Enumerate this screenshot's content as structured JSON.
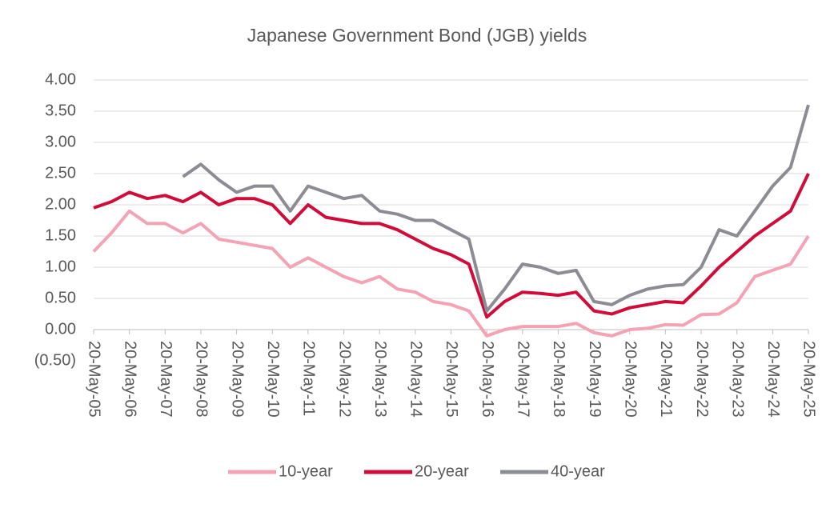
{
  "chart_data": {
    "type": "line",
    "title": "Japanese Government Bond (JGB) yields",
    "x": [
      "20-May-05",
      "20-Nov-05",
      "20-May-06",
      "20-Nov-06",
      "20-May-07",
      "20-Nov-07",
      "20-May-08",
      "20-Nov-08",
      "20-May-09",
      "20-Nov-09",
      "20-May-10",
      "20-Nov-10",
      "20-May-11",
      "20-Nov-11",
      "20-May-12",
      "20-Nov-12",
      "20-May-13",
      "20-Nov-13",
      "20-May-14",
      "20-Nov-14",
      "20-May-15",
      "20-Nov-15",
      "20-May-16",
      "20-Nov-16",
      "20-May-17",
      "20-Nov-17",
      "20-May-18",
      "20-Nov-18",
      "20-May-19",
      "20-Nov-19",
      "20-May-20",
      "20-Nov-20",
      "20-May-21",
      "20-Nov-21",
      "20-May-22",
      "20-Nov-22",
      "20-May-23",
      "20-Nov-23",
      "20-May-24",
      "20-Nov-24",
      "20-May-25"
    ],
    "series": [
      {
        "name": "10-year",
        "color": "#f4a3b5",
        "values": [
          1.25,
          1.55,
          1.9,
          1.7,
          1.7,
          1.55,
          1.7,
          1.45,
          1.4,
          1.35,
          1.3,
          1.0,
          1.15,
          1.0,
          0.85,
          0.75,
          0.85,
          0.65,
          0.6,
          0.45,
          0.4,
          0.3,
          -0.1,
          0.0,
          0.05,
          0.05,
          0.05,
          0.1,
          -0.05,
          -0.1,
          0.0,
          0.02,
          0.08,
          0.07,
          0.24,
          0.25,
          0.43,
          0.85,
          0.95,
          1.05,
          1.5
        ]
      },
      {
        "name": "20-year",
        "color": "#d00d3a",
        "values": [
          1.95,
          2.05,
          2.2,
          2.1,
          2.15,
          2.05,
          2.2,
          2.0,
          2.1,
          2.1,
          2.0,
          1.7,
          2.0,
          1.8,
          1.75,
          1.7,
          1.7,
          1.6,
          1.45,
          1.3,
          1.2,
          1.05,
          0.2,
          0.45,
          0.6,
          0.58,
          0.55,
          0.6,
          0.3,
          0.25,
          0.35,
          0.4,
          0.45,
          0.43,
          0.7,
          1.0,
          1.25,
          1.5,
          1.7,
          1.9,
          2.5
        ]
      },
      {
        "name": "40-year",
        "color": "#8c8c94",
        "values": [
          null,
          null,
          null,
          null,
          null,
          2.45,
          2.65,
          2.4,
          2.2,
          2.3,
          2.3,
          1.9,
          2.3,
          2.2,
          2.1,
          2.15,
          1.9,
          1.85,
          1.75,
          1.75,
          1.6,
          1.45,
          0.3,
          0.65,
          1.05,
          1.0,
          0.9,
          0.95,
          0.45,
          0.4,
          0.55,
          0.65,
          0.7,
          0.72,
          1.0,
          1.6,
          1.5,
          1.9,
          2.3,
          2.6,
          3.6
        ]
      }
    ],
    "xticks": [
      "20-May-05",
      "20-May-06",
      "20-May-07",
      "20-May-08",
      "20-May-09",
      "20-May-10",
      "20-May-11",
      "20-May-12",
      "20-May-13",
      "20-May-14",
      "20-May-15",
      "20-May-16",
      "20-May-17",
      "20-May-18",
      "20-May-19",
      "20-May-20",
      "20-May-21",
      "20-May-22",
      "20-May-23",
      "20-May-24",
      "20-May-25"
    ],
    "ylim": [
      -0.5,
      4.0
    ],
    "yticks": [
      {
        "value": -0.5,
        "label": "(0.50)"
      },
      {
        "value": 0,
        "label": "0.00"
      },
      {
        "value": 0.5,
        "label": "0.50"
      },
      {
        "value": 1,
        "label": "1.00"
      },
      {
        "value": 1.5,
        "label": "1.50"
      },
      {
        "value": 2,
        "label": "2.00"
      },
      {
        "value": 2.5,
        "label": "2.50"
      },
      {
        "value": 3,
        "label": "3.00"
      },
      {
        "value": 3.5,
        "label": "3.50"
      },
      {
        "value": 4,
        "label": "4.00"
      }
    ],
    "grid": true,
    "legend": "bottom"
  }
}
